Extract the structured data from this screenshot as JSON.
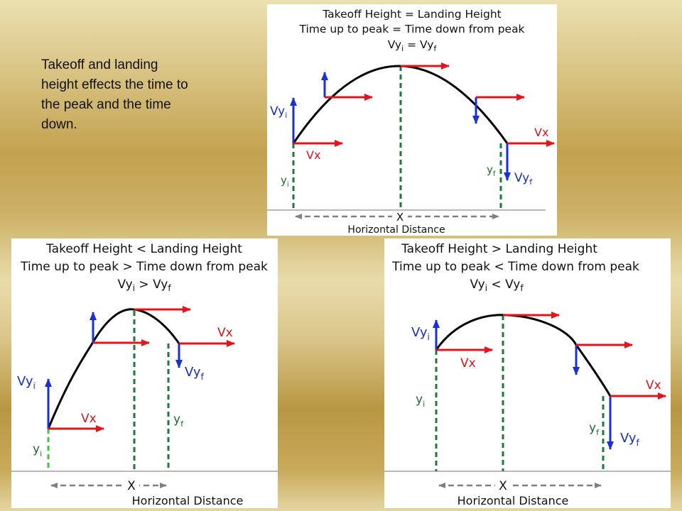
{
  "caption": "Takeoff and landing height effects the time to the peak and the time down.",
  "colors": {
    "velocity_horizontal": "#e3141c",
    "velocity_vertical": "#1a2fd6",
    "height_line": "#1f7a35",
    "trajectory": "#000000",
    "ground": "#a0a0a0",
    "distance_arrow": "#808080"
  },
  "panels": {
    "equal": {
      "title_line1": "Takeoff Height = Landing Height",
      "title_line2": "Time up to peak = Time down from peak",
      "cmp_left": "Vy",
      "cmp_left_sub": "i",
      "cmp_op": " = ",
      "cmp_right": "Vy",
      "cmp_right_sub": "f",
      "label_vyi": "Vy",
      "label_vyi_sub": "i",
      "label_vx_start": "Vx",
      "label_vx_end": "Vx",
      "label_vyf": "Vy",
      "label_vyf_sub": "f",
      "label_yi": "y",
      "label_yi_sub": "i",
      "label_yf": "y",
      "label_yf_sub": "f",
      "label_x": "X",
      "label_distance": "Horizontal Distance"
    },
    "lower": {
      "title_line1": "Takeoff Height < Landing Height",
      "title_line2": "Time up to peak > Time down from peak",
      "cmp_left": "Vy",
      "cmp_left_sub": "i",
      "cmp_op": " > ",
      "cmp_right": "Vy",
      "cmp_right_sub": "f",
      "label_vyi": "Vy",
      "label_vyi_sub": "i",
      "label_vx_start": "Vx",
      "label_vx_end": "Vx",
      "label_vyf": "Vy",
      "label_vyf_sub": "f",
      "label_yi": "y",
      "label_yi_sub": "i",
      "label_yf": "y",
      "label_yf_sub": "f",
      "label_x": "X",
      "label_distance": "Horizontal Distance"
    },
    "higher": {
      "title_line1": "Takeoff Height > Landing Height",
      "title_line2": "Time up to peak < Time down from peak",
      "cmp_left": "Vy",
      "cmp_left_sub": "i",
      "cmp_op": " < ",
      "cmp_right": "Vy",
      "cmp_right_sub": "f",
      "label_vyi": "Vy",
      "label_vyi_sub": "i",
      "label_vx_start": "Vx",
      "label_vx_end": "Vx",
      "label_vyf": "Vy",
      "label_vyf_sub": "f",
      "label_yi": "y",
      "label_yi_sub": "i",
      "label_yf": "y",
      "label_yf_sub": "f",
      "label_x": "X",
      "label_distance": "Horizontal Distance"
    }
  }
}
